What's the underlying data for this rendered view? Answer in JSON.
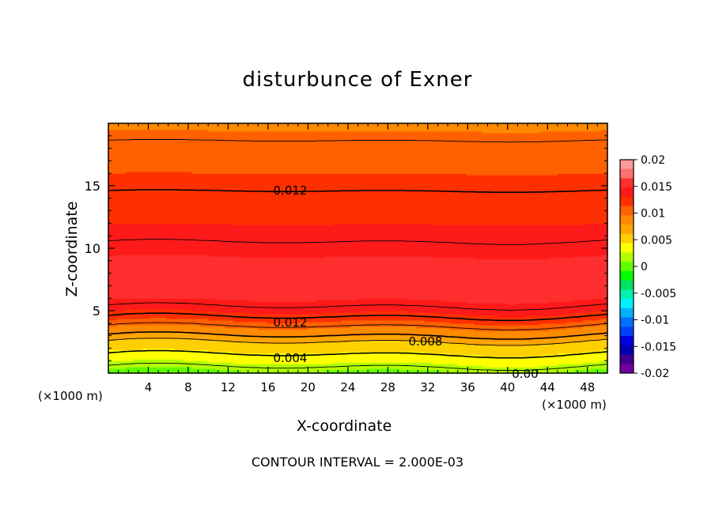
{
  "chart_data": {
    "type": "heatmap",
    "title": "disturbunce of Exner",
    "xlabel": "X-coordinate",
    "ylabel": "Z-coordinate",
    "x_unit_left": "(×1000 m)",
    "x_unit_right": "(×1000 m)",
    "xlim": [
      0,
      50
    ],
    "ylim": [
      0,
      20
    ],
    "x_ticks": [
      4,
      8,
      12,
      16,
      20,
      24,
      28,
      32,
      36,
      40,
      44,
      48
    ],
    "y_ticks": [
      5,
      10,
      15
    ],
    "colorbar": {
      "range": [
        -0.02,
        0.02
      ],
      "tick_labels": [
        "0.02",
        "0.015",
        "0.01",
        "0.005",
        "0",
        "-0.005",
        "-0.01",
        "-0.015",
        "-0.02"
      ],
      "colors_top_to_bottom": [
        "#ff9999",
        "#ff7070",
        "#ff2f2f",
        "#ff1a1a",
        "#ff3000",
        "#ff6000",
        "#ff8a00",
        "#ffa500",
        "#ffd000",
        "#ffff00",
        "#b0ff00",
        "#60ff00",
        "#00ff00",
        "#00e060",
        "#00f0b0",
        "#00f0ff",
        "#00b0ff",
        "#0070ff",
        "#0040ff",
        "#0000e0",
        "#0000b0",
        "#400090",
        "#7000a0"
      ]
    },
    "contour_labels": [
      "0.012",
      "0.012",
      "0.008",
      "0.004",
      "0.00"
    ],
    "contour_interval_text": "CONTOUR INTERVAL = 2.000E-03",
    "profile_z": [
      0,
      0.5,
      1,
      1.5,
      2,
      2.5,
      3,
      3.5,
      4,
      4.5,
      5,
      6,
      7.5,
      9,
      10.5,
      12,
      13.5,
      15,
      17,
      19,
      20
    ],
    "profile_value": [
      0.0,
      0.002,
      0.003,
      0.004,
      0.005,
      0.006,
      0.008,
      0.009,
      0.011,
      0.012,
      0.0135,
      0.015,
      0.0155,
      0.015,
      0.014,
      0.013,
      0.0125,
      0.0118,
      0.0108,
      0.0098,
      0.0092
    ]
  }
}
